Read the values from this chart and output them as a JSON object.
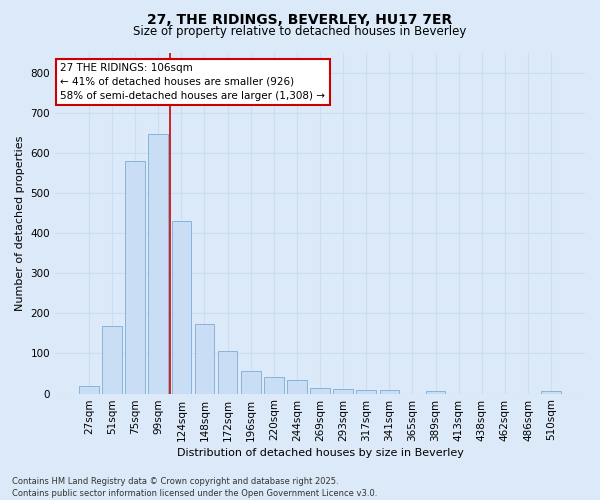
{
  "title_line1": "27, THE RIDINGS, BEVERLEY, HU17 7ER",
  "title_line2": "Size of property relative to detached houses in Beverley",
  "xlabel": "Distribution of detached houses by size in Beverley",
  "ylabel": "Number of detached properties",
  "categories": [
    "27sqm",
    "51sqm",
    "75sqm",
    "99sqm",
    "124sqm",
    "148sqm",
    "172sqm",
    "196sqm",
    "220sqm",
    "244sqm",
    "269sqm",
    "293sqm",
    "317sqm",
    "341sqm",
    "365sqm",
    "389sqm",
    "413sqm",
    "438sqm",
    "462sqm",
    "486sqm",
    "510sqm"
  ],
  "values": [
    20,
    168,
    580,
    648,
    430,
    173,
    107,
    57,
    42,
    33,
    15,
    12,
    10,
    8,
    0,
    7,
    0,
    0,
    0,
    0,
    7
  ],
  "bar_color": "#c9ddf5",
  "bar_edge_color": "#7aadd4",
  "grid_color": "#c9ddf5",
  "vline_color": "#cc0000",
  "vline_x_index": 3.5,
  "annotation_text": "27 THE RIDINGS: 106sqm\n← 41% of detached houses are smaller (926)\n58% of semi-detached houses are larger (1,308) →",
  "annotation_box_facecolor": "white",
  "annotation_box_edgecolor": "#cc0000",
  "ylim": [
    0,
    850
  ],
  "yticks": [
    0,
    100,
    200,
    300,
    400,
    500,
    600,
    700,
    800
  ],
  "footer_line1": "Contains HM Land Registry data © Crown copyright and database right 2025.",
  "footer_line2": "Contains public sector information licensed under the Open Government Licence v3.0.",
  "bg_color": "#dce9f8",
  "plot_bg_color": "#dce9f8",
  "title_fontsize": 10,
  "subtitle_fontsize": 8.5,
  "axis_label_fontsize": 8,
  "tick_fontsize": 7.5,
  "annotation_fontsize": 7.5,
  "footer_fontsize": 6
}
